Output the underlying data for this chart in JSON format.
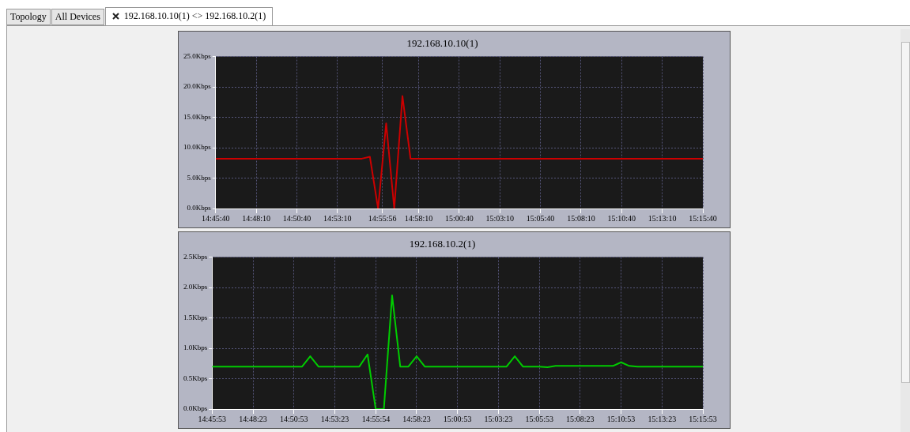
{
  "chart_data": [
    {
      "type": "line",
      "title": "192.168.10.10(1)",
      "annotations": [
        "Topology",
        "All Devices",
        "192.168.10.10(1) <> 192.168.10.2(1)"
      ],
      "x": [
        14.7611,
        14.9111,
        14.9194,
        14.9278,
        14.9361,
        14.9444,
        14.9528,
        14.9611,
        15.2611
      ],
      "series": [
        {
          "color": "#cc0000",
          "values": [
            8.2,
            8.2,
            8.5,
            0,
            14,
            0,
            18.5,
            8.2,
            8.2
          ]
        }
      ],
      "xlim": [
        14.7611,
        15.2611
      ],
      "xticks": [
        {
          "value": 14.7611,
          "label": "14:45:40"
        },
        {
          "value": 14.8028,
          "label": "14:48:10"
        },
        {
          "value": 14.8444,
          "label": "14:50:40"
        },
        {
          "value": 14.8861,
          "label": "14:53:10"
        },
        {
          "value": 14.9322,
          "label": "14:55:56"
        },
        {
          "value": 14.9694,
          "label": "14:58:10"
        },
        {
          "value": 15.0111,
          "label": "15:00:40"
        },
        {
          "value": 15.0528,
          "label": "15:03:10"
        },
        {
          "value": 15.0944,
          "label": "15:05:40"
        },
        {
          "value": 15.1361,
          "label": "15:08:10"
        },
        {
          "value": 15.1778,
          "label": "15:10:40"
        },
        {
          "value": 15.2194,
          "label": "15:13:10"
        },
        {
          "value": 15.2611,
          "label": "15:15:40"
        }
      ],
      "ylim": [
        0,
        25
      ],
      "yticks": [
        {
          "value": 0,
          "label": "0.0Kbps"
        },
        {
          "value": 5,
          "label": "5.0Kbps"
        },
        {
          "value": 10,
          "label": "10.0Kbps"
        },
        {
          "value": 15,
          "label": "15.0Kbps"
        },
        {
          "value": 20,
          "label": "20.0Kbps"
        },
        {
          "value": 25,
          "label": "25.0Kbps"
        }
      ],
      "grid": true,
      "legend": false,
      "marker": "none",
      "line_style": "solid"
    },
    {
      "type": "line",
      "title": "192.168.10.2(1)",
      "x": [
        14.7647,
        14.8564,
        14.8647,
        14.8731,
        14.9147,
        14.9231,
        14.9314,
        14.9397,
        14.9481,
        14.9564,
        14.9647,
        14.9731,
        14.9814,
        15.0647,
        15.0731,
        15.0814,
        15.0981,
        15.1064,
        15.1147,
        15.1731,
        15.1814,
        15.1897,
        15.1981,
        15.2647
      ],
      "series": [
        {
          "color": "#00cc00",
          "values": [
            0.7,
            0.7,
            0.87,
            0.7,
            0.7,
            0.9,
            0,
            0,
            1.87,
            0.7,
            0.7,
            0.87,
            0.7,
            0.7,
            0.87,
            0.7,
            0.7,
            0.69,
            0.71,
            0.71,
            0.77,
            0.71,
            0.7,
            0.7
          ]
        }
      ],
      "xlim": [
        14.7647,
        15.2647
      ],
      "xticks": [
        {
          "value": 14.7647,
          "label": "14:45:53"
        },
        {
          "value": 14.8064,
          "label": "14:48:23"
        },
        {
          "value": 14.8481,
          "label": "14:50:53"
        },
        {
          "value": 14.8897,
          "label": "14:53:23"
        },
        {
          "value": 14.9317,
          "label": "14:55:54"
        },
        {
          "value": 14.9731,
          "label": "14:58:23"
        },
        {
          "value": 15.0147,
          "label": "15:00:53"
        },
        {
          "value": 15.0564,
          "label": "15:03:23"
        },
        {
          "value": 15.0981,
          "label": "15:05:53"
        },
        {
          "value": 15.1397,
          "label": "15:08:23"
        },
        {
          "value": 15.1814,
          "label": "15:10:53"
        },
        {
          "value": 15.2231,
          "label": "15:13:23"
        },
        {
          "value": 15.2647,
          "label": "15:15:53"
        }
      ],
      "ylim": [
        0,
        2.5
      ],
      "yticks": [
        {
          "value": 0,
          "label": "0.0Kbps"
        },
        {
          "value": 0.5,
          "label": "0.5Kbps"
        },
        {
          "value": 1,
          "label": "1.0Kbps"
        },
        {
          "value": 1.5,
          "label": "1.5Kbps"
        },
        {
          "value": 2,
          "label": "2.0Kbps"
        },
        {
          "value": 2.5,
          "label": "2.5Kbps"
        }
      ],
      "grid": true,
      "legend": false,
      "marker": "none",
      "line_style": "solid"
    }
  ]
}
